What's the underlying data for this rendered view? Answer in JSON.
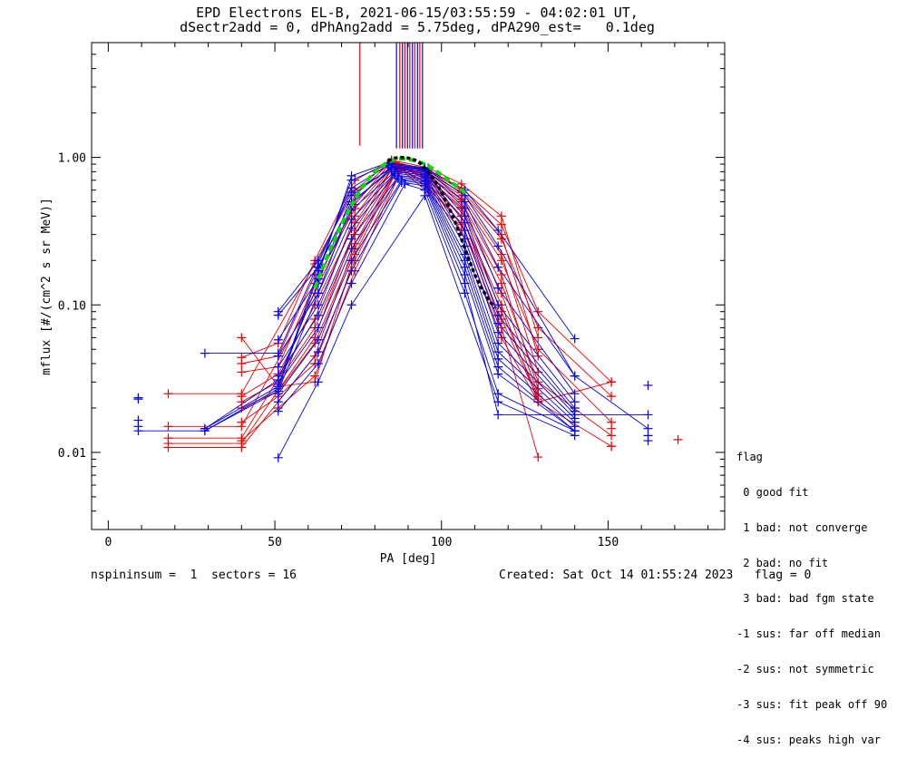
{
  "chart_data": {
    "type": "scatter",
    "title_line1": "EPD Electrons EL-B, 2021-06-15/03:55:59 - 04:02:01 UT,",
    "title_line2": "dSectr2add = 0, dPhAng2add = 5.75deg, dPA290_est=   0.1deg",
    "xlabel": "PA [deg]",
    "ylabel": "mflux [#/(cm^2 s sr MeV)]",
    "xlim": [
      -5,
      185
    ],
    "ylim": [
      0.003,
      6
    ],
    "y_scale": "log",
    "x_ticks": [
      0,
      50,
      100,
      150
    ],
    "x_tick_labels": [
      "0",
      "50",
      "100",
      "150"
    ],
    "y_ticks": [
      0.01,
      0.1,
      1.0
    ],
    "y_tick_labels": [
      "0.01",
      "0.10",
      "1.00"
    ],
    "colors": {
      "red": "#ee0000",
      "blue": "#0000ee",
      "green": "#00dd00",
      "black": "#000000"
    },
    "vertical_markers": [
      {
        "x": 75.5,
        "y_top": 6,
        "y_bottom": 1.2,
        "color": "red"
      },
      {
        "x": 86.5,
        "y_top": 6,
        "y_bottom": 1.15,
        "color": "blue"
      },
      {
        "x": 87.5,
        "y_top": 6,
        "y_bottom": 1.15,
        "color": "red"
      },
      {
        "x": 88.3,
        "y_top": 6,
        "y_bottom": 1.15,
        "color": "blue"
      },
      {
        "x": 89.0,
        "y_top": 6,
        "y_bottom": 1.15,
        "color": "red"
      },
      {
        "x": 89.8,
        "y_top": 6,
        "y_bottom": 1.15,
        "color": "blue"
      },
      {
        "x": 90.5,
        "y_top": 6,
        "y_bottom": 1.15,
        "color": "red"
      },
      {
        "x": 91.3,
        "y_top": 6,
        "y_bottom": 1.15,
        "color": "blue"
      },
      {
        "x": 92.0,
        "y_top": 6,
        "y_bottom": 1.15,
        "color": "red"
      },
      {
        "x": 92.8,
        "y_top": 6,
        "y_bottom": 1.15,
        "color": "blue"
      },
      {
        "x": 93.5,
        "y_top": 6,
        "y_bottom": 1.15,
        "color": "red"
      },
      {
        "x": 94.3,
        "y_top": 6,
        "y_bottom": 1.15,
        "color": "blue"
      }
    ],
    "series": [
      {
        "color": "red",
        "x": [
          18,
          40,
          62,
          74,
          85,
          96,
          106,
          118,
          129,
          151
        ],
        "y": [
          0.025,
          0.025,
          0.19,
          0.6,
          0.95,
          0.8,
          0.62,
          0.35,
          0.09,
          0.03
        ]
      },
      {
        "color": "red",
        "x": [
          18,
          40,
          62,
          74,
          85,
          96,
          106,
          118,
          129,
          151
        ],
        "y": [
          0.015,
          0.015,
          0.12,
          0.48,
          0.93,
          0.78,
          0.58,
          0.28,
          0.07,
          0.024
        ]
      },
      {
        "color": "red",
        "x": [
          18,
          40,
          62,
          74,
          86,
          96,
          106,
          118,
          129,
          151
        ],
        "y": [
          0.0125,
          0.0125,
          0.08,
          0.4,
          0.92,
          0.75,
          0.52,
          0.2,
          0.05,
          0.016
        ]
      },
      {
        "color": "red",
        "x": [
          18,
          40,
          62,
          74,
          86,
          96,
          106,
          118,
          129,
          151
        ],
        "y": [
          0.0115,
          0.0115,
          0.06,
          0.32,
          0.9,
          0.72,
          0.46,
          0.14,
          0.03,
          0.013
        ]
      },
      {
        "color": "red",
        "x": [
          18,
          40,
          62,
          74,
          87,
          96,
          106,
          118,
          129,
          151
        ],
        "y": [
          0.0108,
          0.0108,
          0.045,
          0.26,
          0.88,
          0.7,
          0.4,
          0.1,
          0.022,
          0.011
        ]
      },
      {
        "color": "red",
        "x": [
          40,
          51,
          62,
          74,
          87,
          96,
          106,
          118,
          129
        ],
        "y": [
          0.06,
          0.028,
          0.03,
          0.22,
          0.85,
          0.66,
          0.35,
          0.07,
          0.0093
        ]
      },
      {
        "color": "red",
        "x": [
          40,
          51,
          62,
          74,
          85,
          96,
          106,
          118,
          129
        ],
        "y": [
          0.044,
          0.055,
          0.2,
          0.7,
          0.96,
          0.85,
          0.66,
          0.4,
          0.06
        ]
      },
      {
        "color": "red",
        "x": [
          40,
          51,
          62,
          74,
          85,
          96,
          106,
          118,
          129
        ],
        "y": [
          0.04,
          0.045,
          0.16,
          0.55,
          0.94,
          0.82,
          0.6,
          0.3,
          0.045
        ]
      },
      {
        "color": "red",
        "x": [
          40,
          51,
          62,
          74,
          86,
          96,
          106,
          118,
          129
        ],
        "y": [
          0.035,
          0.038,
          0.14,
          0.45,
          0.92,
          0.78,
          0.55,
          0.22,
          0.035
        ]
      },
      {
        "color": "red",
        "x": [
          40,
          51,
          62,
          74,
          86,
          96,
          106,
          118,
          129
        ],
        "y": [
          0.024,
          0.034,
          0.1,
          0.36,
          0.9,
          0.74,
          0.5,
          0.16,
          0.027
        ]
      },
      {
        "color": "red",
        "x": [
          40,
          51,
          62,
          74,
          87,
          96,
          106,
          118,
          129
        ],
        "y": [
          0.022,
          0.03,
          0.07,
          0.3,
          0.88,
          0.7,
          0.45,
          0.12,
          0.025
        ]
      },
      {
        "color": "red",
        "x": [
          40,
          51,
          62,
          74,
          87,
          96,
          106,
          118,
          129
        ],
        "y": [
          0.02,
          0.026,
          0.055,
          0.24,
          0.86,
          0.66,
          0.4,
          0.09,
          0.024
        ]
      },
      {
        "color": "red",
        "x": [
          40,
          51,
          62,
          74,
          88,
          96,
          106,
          118,
          129
        ],
        "y": [
          0.016,
          0.024,
          0.04,
          0.2,
          0.84,
          0.62,
          0.36,
          0.08,
          0.023
        ]
      },
      {
        "color": "red",
        "x": [
          40,
          51,
          62,
          74,
          88,
          96,
          106,
          118,
          129,
          151
        ],
        "y": [
          0.012,
          0.02,
          0.033,
          0.17,
          0.82,
          0.58,
          0.32,
          0.06,
          0.022,
          0.03
        ]
      },
      {
        "color": "blue",
        "x": [
          9,
          29,
          51,
          63,
          73,
          84,
          95,
          107,
          117,
          140
        ],
        "y": [
          0.014,
          0.014,
          0.027,
          0.16,
          0.75,
          0.92,
          0.85,
          0.6,
          0.32,
          0.059
        ]
      },
      {
        "color": "blue",
        "x": [
          29,
          51,
          63,
          73,
          84,
          95,
          107,
          117,
          140,
          162
        ],
        "y": [
          0.0145,
          0.028,
          0.17,
          0.7,
          0.9,
          0.84,
          0.55,
          0.25,
          0.033,
          0.0145
        ]
      },
      {
        "color": "blue",
        "x": [
          29,
          51,
          63,
          73,
          84,
          95,
          107,
          117,
          140
        ],
        "y": [
          0.047,
          0.047,
          0.19,
          0.62,
          0.88,
          0.83,
          0.5,
          0.18,
          0.033
        ]
      },
      {
        "color": "blue",
        "x": [
          29,
          51,
          63,
          73,
          85,
          95,
          107,
          117,
          140
        ],
        "y": [
          0.0145,
          0.031,
          0.14,
          0.55,
          0.86,
          0.82,
          0.45,
          0.13,
          0.025
        ]
      },
      {
        "color": "blue",
        "x": [
          29,
          51,
          63,
          73,
          85,
          95,
          107,
          117,
          140
        ],
        "y": [
          0.014,
          0.026,
          0.12,
          0.48,
          0.85,
          0.8,
          0.4,
          0.1,
          0.022
        ]
      },
      {
        "color": "blue",
        "x": [
          51,
          63,
          73,
          85,
          95,
          107,
          117,
          140
        ],
        "y": [
          0.09,
          0.2,
          0.58,
          0.84,
          0.8,
          0.36,
          0.085,
          0.02
        ]
      },
      {
        "color": "blue",
        "x": [
          51,
          63,
          73,
          85,
          95,
          107,
          117,
          140
        ],
        "y": [
          0.085,
          0.18,
          0.5,
          0.82,
          0.78,
          0.32,
          0.075,
          0.019
        ]
      },
      {
        "color": "blue",
        "x": [
          51,
          63,
          73,
          86,
          95,
          107,
          117,
          140
        ],
        "y": [
          0.058,
          0.15,
          0.44,
          0.8,
          0.76,
          0.28,
          0.065,
          0.018
        ]
      },
      {
        "color": "blue",
        "x": [
          51,
          63,
          73,
          86,
          95,
          107,
          117,
          140
        ],
        "y": [
          0.045,
          0.12,
          0.38,
          0.78,
          0.74,
          0.25,
          0.055,
          0.017
        ]
      },
      {
        "color": "blue",
        "x": [
          51,
          63,
          73,
          86,
          95,
          107,
          117,
          140
        ],
        "y": [
          0.038,
          0.1,
          0.33,
          0.76,
          0.72,
          0.22,
          0.048,
          0.016
        ]
      },
      {
        "color": "blue",
        "x": [
          51,
          63,
          73,
          87,
          95,
          107,
          117,
          140
        ],
        "y": [
          0.033,
          0.085,
          0.28,
          0.74,
          0.7,
          0.2,
          0.043,
          0.015
        ]
      },
      {
        "color": "blue",
        "x": [
          51,
          63,
          73,
          87,
          95,
          107,
          117,
          140
        ],
        "y": [
          0.029,
          0.07,
          0.24,
          0.72,
          0.68,
          0.18,
          0.038,
          0.014
        ]
      },
      {
        "color": "blue",
        "x": [
          51,
          63,
          73,
          88,
          95,
          107,
          117,
          140
        ],
        "y": [
          0.025,
          0.058,
          0.2,
          0.7,
          0.66,
          0.16,
          0.034,
          0.014
        ]
      },
      {
        "color": "blue",
        "x": [
          51,
          63,
          73,
          88,
          95,
          107,
          117,
          162
        ],
        "y": [
          0.022,
          0.048,
          0.17,
          0.68,
          0.64,
          0.14,
          0.018,
          0.018
        ]
      },
      {
        "color": "blue",
        "x": [
          51,
          63,
          73,
          89,
          95,
          107,
          117,
          140
        ],
        "y": [
          0.019,
          0.04,
          0.14,
          0.66,
          0.6,
          0.12,
          0.025,
          0.014
        ]
      },
      {
        "color": "blue",
        "x": [
          51,
          63,
          73,
          95,
          117,
          140
        ],
        "y": [
          0.0092,
          0.03,
          0.1,
          0.55,
          0.022,
          0.013
        ]
      }
    ],
    "marker_only_points": [
      {
        "color": "blue",
        "x": 9,
        "y": 0.0235
      },
      {
        "color": "blue",
        "x": 9,
        "y": 0.023
      },
      {
        "color": "blue",
        "x": 9,
        "y": 0.0165
      },
      {
        "color": "blue",
        "x": 9,
        "y": 0.015
      },
      {
        "color": "blue",
        "x": 162,
        "y": 0.0285
      },
      {
        "color": "blue",
        "x": 162,
        "y": 0.012
      },
      {
        "color": "blue",
        "x": 162,
        "y": 0.013
      },
      {
        "color": "red",
        "x": 171,
        "y": 0.0122
      },
      {
        "color": "red",
        "x": 151,
        "y": 0.0145
      },
      {
        "color": "red",
        "x": 151,
        "y": 0.011
      }
    ],
    "fit_black": {
      "x": [
        84,
        86,
        88,
        90,
        92,
        94,
        96,
        98,
        100,
        102,
        104,
        106,
        108,
        110,
        112,
        114,
        116
      ],
      "y": [
        0.95,
        0.99,
        1.0,
        0.99,
        0.96,
        0.9,
        0.8,
        0.7,
        0.58,
        0.47,
        0.37,
        0.28,
        0.21,
        0.16,
        0.13,
        0.11,
        0.095
      ]
    },
    "fit_green": {
      "x": [
        62,
        64,
        66,
        68,
        70,
        72,
        74,
        76,
        78,
        80,
        82,
        84,
        86,
        88,
        90,
        92,
        94,
        96,
        98,
        100,
        102,
        104,
        106,
        108
      ],
      "y": [
        0.13,
        0.17,
        0.22,
        0.28,
        0.35,
        0.43,
        0.52,
        0.62,
        0.71,
        0.8,
        0.87,
        0.93,
        0.97,
        0.98,
        0.97,
        0.95,
        0.92,
        0.88,
        0.82,
        0.76,
        0.7,
        0.65,
        0.6,
        0.56
      ]
    },
    "legend": {
      "title": "flag",
      "entries": [
        " 0 good fit",
        " 1 bad: not converge",
        " 2 bad: no fit",
        " 3 bad: bad fgm state",
        "-1 sus: far off median",
        "-2 sus: not symmetric",
        "-3 sus: fit peak off 90",
        "-4 sus: peaks high var"
      ]
    },
    "footer_left": "nspininsum =  1  sectors = 16",
    "footer_right": "Created: Sat Oct 14 01:55:24 2023   flag = 0"
  }
}
